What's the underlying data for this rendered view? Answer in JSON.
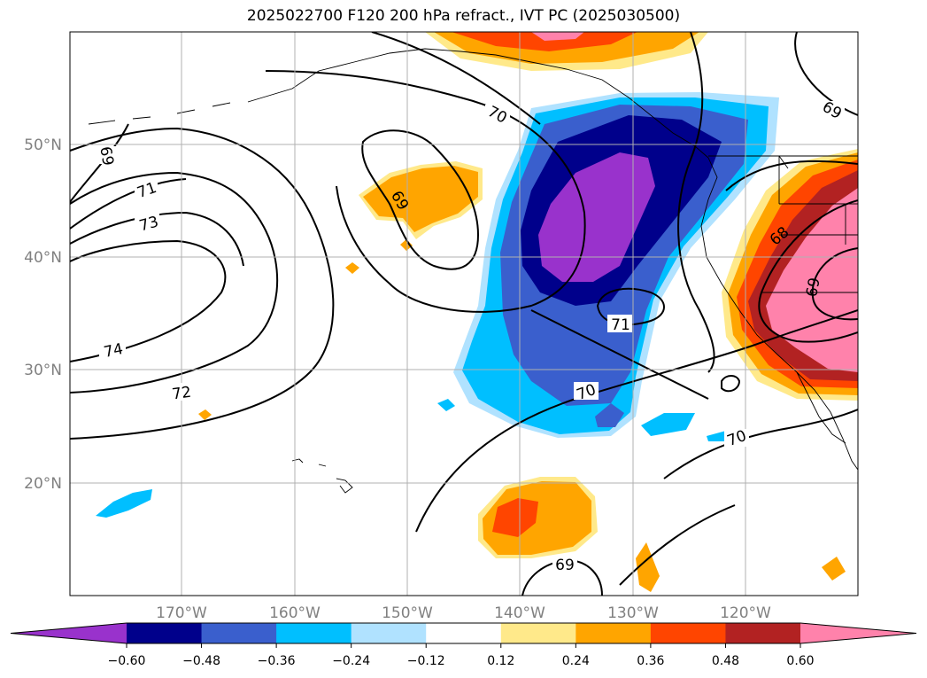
{
  "title": "2025022700 F120 200 hPa refract., IVT PC (2025030500)",
  "lat_labels": [
    "50°N",
    "40°N",
    "30°N",
    "20°N"
  ],
  "lon_labels": [
    "170°W",
    "160°W",
    "150°W",
    "140°W",
    "130°W",
    "120°W"
  ],
  "contour_labels": [
    "69",
    "71",
    "73",
    "74",
    "72",
    "70",
    "69",
    "71",
    "70",
    "70",
    "69",
    "69",
    "68",
    "69"
  ],
  "colorbar": {
    "ticks": [
      "−0.60",
      "−0.48",
      "−0.36",
      "−0.24",
      "−0.12",
      "0.12",
      "0.24",
      "0.36",
      "0.48",
      "0.60"
    ],
    "colors": [
      "#9932cc",
      "#00008b",
      "#3a5fcd",
      "#00bfff",
      "#b0e2ff",
      "#ffffff",
      "#ffe98a",
      "#ffa500",
      "#ff4500",
      "#b22222",
      "#ff82ab"
    ]
  }
}
